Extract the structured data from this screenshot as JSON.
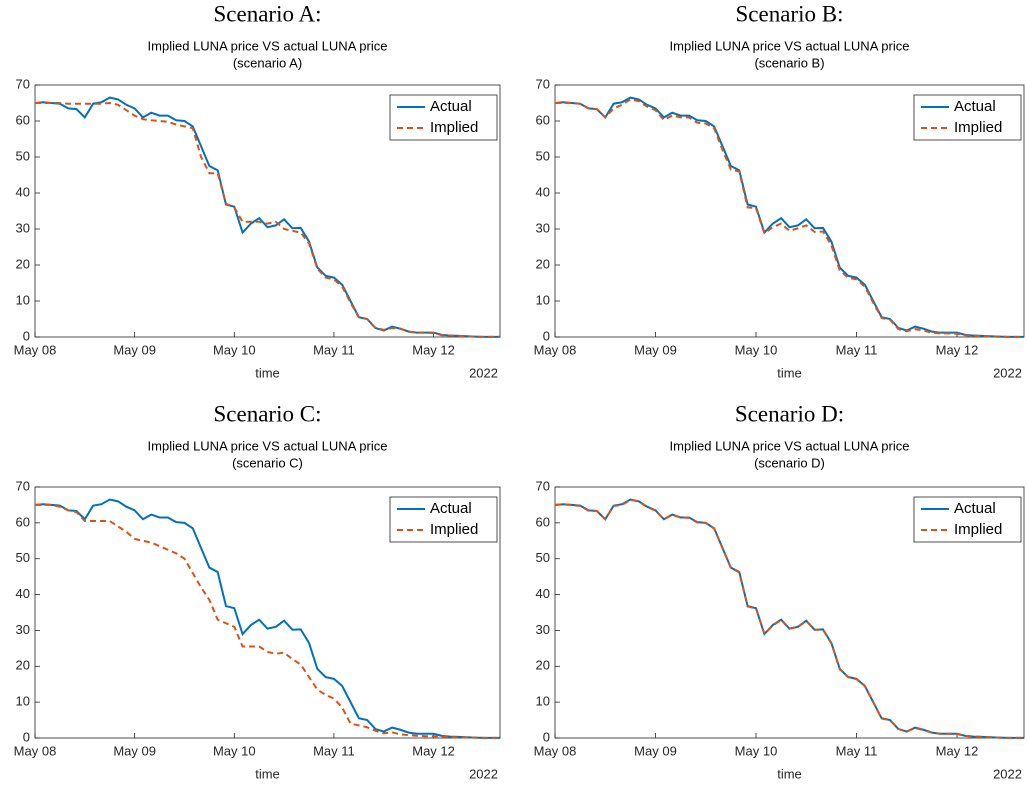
{
  "chart_data": [
    {
      "type": "line",
      "super_title": "Scenario A:",
      "title": "Implied LUNA price VS actual LUNA price",
      "subtitle": "(scenario A)",
      "xlabel": "time",
      "x_secondary_label": "2022",
      "x": [
        "2022-05-08T00:00",
        "2022-05-08T02:00",
        "2022-05-08T04:00",
        "2022-05-08T06:00",
        "2022-05-08T08:00",
        "2022-05-08T10:00",
        "2022-05-08T12:00",
        "2022-05-08T14:00",
        "2022-05-08T16:00",
        "2022-05-08T18:00",
        "2022-05-08T20:00",
        "2022-05-08T22:00",
        "2022-05-09T00:00",
        "2022-05-09T02:00",
        "2022-05-09T04:00",
        "2022-05-09T06:00",
        "2022-05-09T08:00",
        "2022-05-09T10:00",
        "2022-05-09T12:00",
        "2022-05-09T14:00",
        "2022-05-09T16:00",
        "2022-05-09T18:00",
        "2022-05-09T20:00",
        "2022-05-09T22:00",
        "2022-05-10T00:00",
        "2022-05-10T02:00",
        "2022-05-10T04:00",
        "2022-05-10T06:00",
        "2022-05-10T08:00",
        "2022-05-10T10:00",
        "2022-05-10T12:00",
        "2022-05-10T14:00",
        "2022-05-10T16:00",
        "2022-05-10T18:00",
        "2022-05-10T20:00",
        "2022-05-10T22:00",
        "2022-05-11T00:00",
        "2022-05-11T02:00",
        "2022-05-11T04:00",
        "2022-05-11T06:00",
        "2022-05-11T08:00",
        "2022-05-11T10:00",
        "2022-05-11T12:00",
        "2022-05-11T14:00",
        "2022-05-11T16:00",
        "2022-05-11T18:00",
        "2022-05-11T20:00",
        "2022-05-11T22:00",
        "2022-05-12T00:00",
        "2022-05-12T02:00",
        "2022-05-12T04:00",
        "2022-05-12T06:00",
        "2022-05-12T08:00",
        "2022-05-12T10:00",
        "2022-05-12T12:00",
        "2022-05-12T14:00",
        "2022-05-12T16:00"
      ],
      "series": [
        {
          "name": "Actual",
          "color": "#0072bd",
          "dashed": false,
          "values": [
            65,
            65.2,
            65,
            64.8,
            63.5,
            63.3,
            61,
            64.8,
            65.2,
            66.5,
            66,
            64.5,
            63.5,
            61,
            62.3,
            61.5,
            61.5,
            60.2,
            60,
            58.5,
            53,
            47.5,
            46.3,
            36.8,
            36.2,
            29,
            31.5,
            33,
            30.5,
            31,
            32.7,
            30.2,
            30.3,
            26.5,
            19.3,
            17,
            16.5,
            14.5,
            10,
            5.5,
            5,
            2.5,
            1.8,
            2.9,
            2.3,
            1.5,
            1.2,
            1.2,
            1.2,
            0.6,
            0.4,
            0.3,
            0.2,
            0.1,
            0.05,
            0.03,
            0.02
          ]
        },
        {
          "name": "Implied",
          "color": "#d95319",
          "dashed": true,
          "values": [
            65,
            65,
            65,
            65,
            64.8,
            64.8,
            64.8,
            64.8,
            64.8,
            65,
            64.5,
            63,
            61.5,
            60.5,
            60.2,
            60,
            59.8,
            59,
            58.5,
            58,
            50,
            45.5,
            45.5,
            37,
            36,
            32,
            32,
            32,
            31.5,
            32,
            30,
            29.5,
            29,
            26,
            19,
            16.5,
            16,
            14,
            9.5,
            5.5,
            5,
            2.5,
            2,
            2.5,
            2.3,
            1.5,
            1.2,
            1.2,
            1.1,
            0.5,
            0.4,
            0.3,
            0.2,
            0.1,
            0.05,
            0.03,
            0.02
          ]
        }
      ],
      "xlim": [
        "2022-05-08T00:00",
        "2022-05-12T16:00"
      ],
      "xticks": [
        {
          "value": "2022-05-08T00:00",
          "label": "May 08"
        },
        {
          "value": "2022-05-09T00:00",
          "label": "May 09"
        },
        {
          "value": "2022-05-10T00:00",
          "label": "May 10"
        },
        {
          "value": "2022-05-11T00:00",
          "label": "May 11"
        },
        {
          "value": "2022-05-12T00:00",
          "label": "May 12"
        }
      ],
      "ylim": [
        0,
        70
      ],
      "yticks": [
        0,
        10,
        20,
        30,
        40,
        50,
        60,
        70
      ],
      "legend": "northeast"
    },
    {
      "type": "line",
      "super_title": "Scenario B:",
      "title": "Implied LUNA price VS actual LUNA price",
      "subtitle": "(scenario B)",
      "xlabel": "time",
      "x_secondary_label": "2022",
      "x": [
        "2022-05-08T00:00",
        "2022-05-08T02:00",
        "2022-05-08T04:00",
        "2022-05-08T06:00",
        "2022-05-08T08:00",
        "2022-05-08T10:00",
        "2022-05-08T12:00",
        "2022-05-08T14:00",
        "2022-05-08T16:00",
        "2022-05-08T18:00",
        "2022-05-08T20:00",
        "2022-05-08T22:00",
        "2022-05-09T00:00",
        "2022-05-09T02:00",
        "2022-05-09T04:00",
        "2022-05-09T06:00",
        "2022-05-09T08:00",
        "2022-05-09T10:00",
        "2022-05-09T12:00",
        "2022-05-09T14:00",
        "2022-05-09T16:00",
        "2022-05-09T18:00",
        "2022-05-09T20:00",
        "2022-05-09T22:00",
        "2022-05-10T00:00",
        "2022-05-10T02:00",
        "2022-05-10T04:00",
        "2022-05-10T06:00",
        "2022-05-10T08:00",
        "2022-05-10T10:00",
        "2022-05-10T12:00",
        "2022-05-10T14:00",
        "2022-05-10T16:00",
        "2022-05-10T18:00",
        "2022-05-10T20:00",
        "2022-05-10T22:00",
        "2022-05-11T00:00",
        "2022-05-11T02:00",
        "2022-05-11T04:00",
        "2022-05-11T06:00",
        "2022-05-11T08:00",
        "2022-05-11T10:00",
        "2022-05-11T12:00",
        "2022-05-11T14:00",
        "2022-05-11T16:00",
        "2022-05-11T18:00",
        "2022-05-11T20:00",
        "2022-05-11T22:00",
        "2022-05-12T00:00",
        "2022-05-12T02:00",
        "2022-05-12T04:00",
        "2022-05-12T06:00",
        "2022-05-12T08:00",
        "2022-05-12T10:00",
        "2022-05-12T12:00",
        "2022-05-12T14:00",
        "2022-05-12T16:00"
      ],
      "series": [
        {
          "name": "Actual",
          "color": "#0072bd",
          "dashed": false,
          "values": [
            65,
            65.2,
            65,
            64.8,
            63.5,
            63.3,
            61,
            64.8,
            65.2,
            66.5,
            66,
            64.5,
            63.5,
            61,
            62.3,
            61.5,
            61.5,
            60.2,
            60,
            58.5,
            53,
            47.5,
            46.3,
            36.8,
            36.2,
            29,
            31.5,
            33,
            30.5,
            31,
            32.7,
            30.2,
            30.3,
            26.5,
            19.3,
            17,
            16.5,
            14.5,
            10,
            5.5,
            5,
            2.5,
            1.8,
            2.9,
            2.3,
            1.5,
            1.2,
            1.2,
            1.2,
            0.6,
            0.4,
            0.3,
            0.2,
            0.1,
            0.05,
            0.03,
            0.02
          ]
        },
        {
          "name": "Implied",
          "color": "#d95319",
          "dashed": true,
          "values": [
            65,
            65,
            65,
            64.8,
            63.5,
            63.3,
            61,
            63.5,
            64.5,
            66,
            65.5,
            64,
            63,
            60.3,
            61.5,
            61,
            61,
            59.5,
            59.3,
            58,
            52,
            46.5,
            46,
            36,
            35.8,
            28.8,
            30.5,
            31.5,
            29.5,
            30.2,
            31,
            29.2,
            29.3,
            25.5,
            18.5,
            16.5,
            16,
            14,
            9.5,
            5.3,
            4.8,
            2.2,
            1.6,
            2.2,
            1.8,
            1.2,
            1,
            1,
            0.9,
            0.5,
            0.35,
            0.25,
            0.15,
            0.08,
            0.04,
            0.02,
            0.01
          ]
        }
      ],
      "xlim": [
        "2022-05-08T00:00",
        "2022-05-12T16:00"
      ],
      "xticks": [
        {
          "value": "2022-05-08T00:00",
          "label": "May 08"
        },
        {
          "value": "2022-05-09T00:00",
          "label": "May 09"
        },
        {
          "value": "2022-05-10T00:00",
          "label": "May 10"
        },
        {
          "value": "2022-05-11T00:00",
          "label": "May 11"
        },
        {
          "value": "2022-05-12T00:00",
          "label": "May 12"
        }
      ],
      "ylim": [
        0,
        70
      ],
      "yticks": [
        0,
        10,
        20,
        30,
        40,
        50,
        60,
        70
      ],
      "legend": "northeast"
    },
    {
      "type": "line",
      "super_title": "Scenario C:",
      "title": "Implied LUNA price VS actual LUNA price",
      "subtitle": "(scenario C)",
      "xlabel": "time",
      "x_secondary_label": "2022",
      "x": [
        "2022-05-08T00:00",
        "2022-05-08T02:00",
        "2022-05-08T04:00",
        "2022-05-08T06:00",
        "2022-05-08T08:00",
        "2022-05-08T10:00",
        "2022-05-08T12:00",
        "2022-05-08T14:00",
        "2022-05-08T16:00",
        "2022-05-08T18:00",
        "2022-05-08T20:00",
        "2022-05-08T22:00",
        "2022-05-09T00:00",
        "2022-05-09T02:00",
        "2022-05-09T04:00",
        "2022-05-09T06:00",
        "2022-05-09T08:00",
        "2022-05-09T10:00",
        "2022-05-09T12:00",
        "2022-05-09T14:00",
        "2022-05-09T16:00",
        "2022-05-09T18:00",
        "2022-05-09T20:00",
        "2022-05-09T22:00",
        "2022-05-10T00:00",
        "2022-05-10T02:00",
        "2022-05-10T04:00",
        "2022-05-10T06:00",
        "2022-05-10T08:00",
        "2022-05-10T10:00",
        "2022-05-10T12:00",
        "2022-05-10T14:00",
        "2022-05-10T16:00",
        "2022-05-10T18:00",
        "2022-05-10T20:00",
        "2022-05-10T22:00",
        "2022-05-11T00:00",
        "2022-05-11T02:00",
        "2022-05-11T04:00",
        "2022-05-11T06:00",
        "2022-05-11T08:00",
        "2022-05-11T10:00",
        "2022-05-11T12:00",
        "2022-05-11T14:00",
        "2022-05-11T16:00",
        "2022-05-11T18:00",
        "2022-05-11T20:00",
        "2022-05-11T22:00",
        "2022-05-12T00:00",
        "2022-05-12T02:00",
        "2022-05-12T04:00",
        "2022-05-12T06:00",
        "2022-05-12T08:00",
        "2022-05-12T10:00",
        "2022-05-12T12:00",
        "2022-05-12T14:00",
        "2022-05-12T16:00"
      ],
      "series": [
        {
          "name": "Actual",
          "color": "#0072bd",
          "dashed": false,
          "values": [
            65,
            65.2,
            65,
            64.8,
            63.5,
            63.3,
            61,
            64.8,
            65.2,
            66.5,
            66,
            64.5,
            63.5,
            61,
            62.3,
            61.5,
            61.5,
            60.2,
            60,
            58.5,
            53,
            47.5,
            46.3,
            36.8,
            36.2,
            29,
            31.5,
            33,
            30.5,
            31,
            32.7,
            30.2,
            30.3,
            26.5,
            19.3,
            17,
            16.5,
            14.5,
            10,
            5.5,
            5,
            2.5,
            1.8,
            2.9,
            2.3,
            1.5,
            1.2,
            1.2,
            1.2,
            0.6,
            0.4,
            0.3,
            0.2,
            0.1,
            0.05,
            0.03,
            0.02
          ]
        },
        {
          "name": "Implied",
          "color": "#d95319",
          "dashed": true,
          "values": [
            65,
            65,
            65,
            64.5,
            63.5,
            63,
            60.5,
            60.5,
            60.5,
            60.5,
            59,
            57.5,
            55.5,
            55,
            54.5,
            53.5,
            52.5,
            51.5,
            50,
            46,
            42,
            38.5,
            33,
            32,
            31,
            25.5,
            25.5,
            25.5,
            24,
            23.5,
            23.8,
            22,
            20.5,
            17,
            13.5,
            12,
            11,
            8.5,
            4,
            3.5,
            3,
            2,
            1.3,
            1.6,
            1,
            0.8,
            0.6,
            0.5,
            0.5,
            0.4,
            0.3,
            0.2,
            0.15,
            0.1,
            0.05,
            0.03,
            0.02
          ]
        }
      ],
      "xlim": [
        "2022-05-08T00:00",
        "2022-05-12T16:00"
      ],
      "xticks": [
        {
          "value": "2022-05-08T00:00",
          "label": "May 08"
        },
        {
          "value": "2022-05-09T00:00",
          "label": "May 09"
        },
        {
          "value": "2022-05-10T00:00",
          "label": "May 10"
        },
        {
          "value": "2022-05-11T00:00",
          "label": "May 11"
        },
        {
          "value": "2022-05-12T00:00",
          "label": "May 12"
        }
      ],
      "ylim": [
        0,
        70
      ],
      "yticks": [
        0,
        10,
        20,
        30,
        40,
        50,
        60,
        70
      ],
      "legend": "northeast"
    },
    {
      "type": "line",
      "super_title": "Scenario D:",
      "title": "Implied LUNA price VS actual LUNA price",
      "subtitle": "(scenario D)",
      "xlabel": "time",
      "x_secondary_label": "2022",
      "x": [
        "2022-05-08T00:00",
        "2022-05-08T02:00",
        "2022-05-08T04:00",
        "2022-05-08T06:00",
        "2022-05-08T08:00",
        "2022-05-08T10:00",
        "2022-05-08T12:00",
        "2022-05-08T14:00",
        "2022-05-08T16:00",
        "2022-05-08T18:00",
        "2022-05-08T20:00",
        "2022-05-08T22:00",
        "2022-05-09T00:00",
        "2022-05-09T02:00",
        "2022-05-09T04:00",
        "2022-05-09T06:00",
        "2022-05-09T08:00",
        "2022-05-09T10:00",
        "2022-05-09T12:00",
        "2022-05-09T14:00",
        "2022-05-09T16:00",
        "2022-05-09T18:00",
        "2022-05-09T20:00",
        "2022-05-09T22:00",
        "2022-05-10T00:00",
        "2022-05-10T02:00",
        "2022-05-10T04:00",
        "2022-05-10T06:00",
        "2022-05-10T08:00",
        "2022-05-10T10:00",
        "2022-05-10T12:00",
        "2022-05-10T14:00",
        "2022-05-10T16:00",
        "2022-05-10T18:00",
        "2022-05-10T20:00",
        "2022-05-10T22:00",
        "2022-05-11T00:00",
        "2022-05-11T02:00",
        "2022-05-11T04:00",
        "2022-05-11T06:00",
        "2022-05-11T08:00",
        "2022-05-11T10:00",
        "2022-05-11T12:00",
        "2022-05-11T14:00",
        "2022-05-11T16:00",
        "2022-05-11T18:00",
        "2022-05-11T20:00",
        "2022-05-11T22:00",
        "2022-05-12T00:00",
        "2022-05-12T02:00",
        "2022-05-12T04:00",
        "2022-05-12T06:00",
        "2022-05-12T08:00",
        "2022-05-12T10:00",
        "2022-05-12T12:00",
        "2022-05-12T14:00",
        "2022-05-12T16:00"
      ],
      "series": [
        {
          "name": "Actual",
          "color": "#0072bd",
          "dashed": false,
          "values": [
            65,
            65.2,
            65,
            64.8,
            63.5,
            63.3,
            61,
            64.8,
            65.2,
            66.5,
            66,
            64.5,
            63.5,
            61,
            62.3,
            61.5,
            61.5,
            60.2,
            60,
            58.5,
            53,
            47.5,
            46.3,
            36.8,
            36.2,
            29,
            31.5,
            33,
            30.5,
            31,
            32.7,
            30.2,
            30.3,
            26.5,
            19.3,
            17,
            16.5,
            14.5,
            10,
            5.5,
            5,
            2.5,
            1.8,
            2.9,
            2.3,
            1.5,
            1.2,
            1.2,
            1.2,
            0.6,
            0.4,
            0.3,
            0.2,
            0.1,
            0.05,
            0.03,
            0.02
          ]
        },
        {
          "name": "Implied",
          "color": "#d95319",
          "dashed": true,
          "values": [
            65,
            65.1,
            65,
            64.7,
            63.4,
            63.3,
            61,
            64.7,
            65,
            66.4,
            66,
            64.4,
            63.4,
            61,
            62.2,
            61.5,
            61.4,
            60.1,
            60,
            58.4,
            53,
            47.4,
            46.2,
            36.7,
            36.1,
            29,
            31.4,
            32.9,
            30.5,
            31,
            32.6,
            30.2,
            30.2,
            26.4,
            19.2,
            17,
            16.4,
            14.5,
            10,
            5.4,
            5,
            2.5,
            1.8,
            2.8,
            2.2,
            1.5,
            1.2,
            1.2,
            1.1,
            0.6,
            0.4,
            0.3,
            0.2,
            0.1,
            0.05,
            0.03,
            0.02
          ]
        }
      ],
      "xlim": [
        "2022-05-08T00:00",
        "2022-05-12T16:00"
      ],
      "xticks": [
        {
          "value": "2022-05-08T00:00",
          "label": "May 08"
        },
        {
          "value": "2022-05-09T00:00",
          "label": "May 09"
        },
        {
          "value": "2022-05-10T00:00",
          "label": "May 10"
        },
        {
          "value": "2022-05-11T00:00",
          "label": "May 11"
        },
        {
          "value": "2022-05-12T00:00",
          "label": "May 12"
        }
      ],
      "ylim": [
        0,
        70
      ],
      "yticks": [
        0,
        10,
        20,
        30,
        40,
        50,
        60,
        70
      ],
      "legend": "northeast"
    }
  ]
}
